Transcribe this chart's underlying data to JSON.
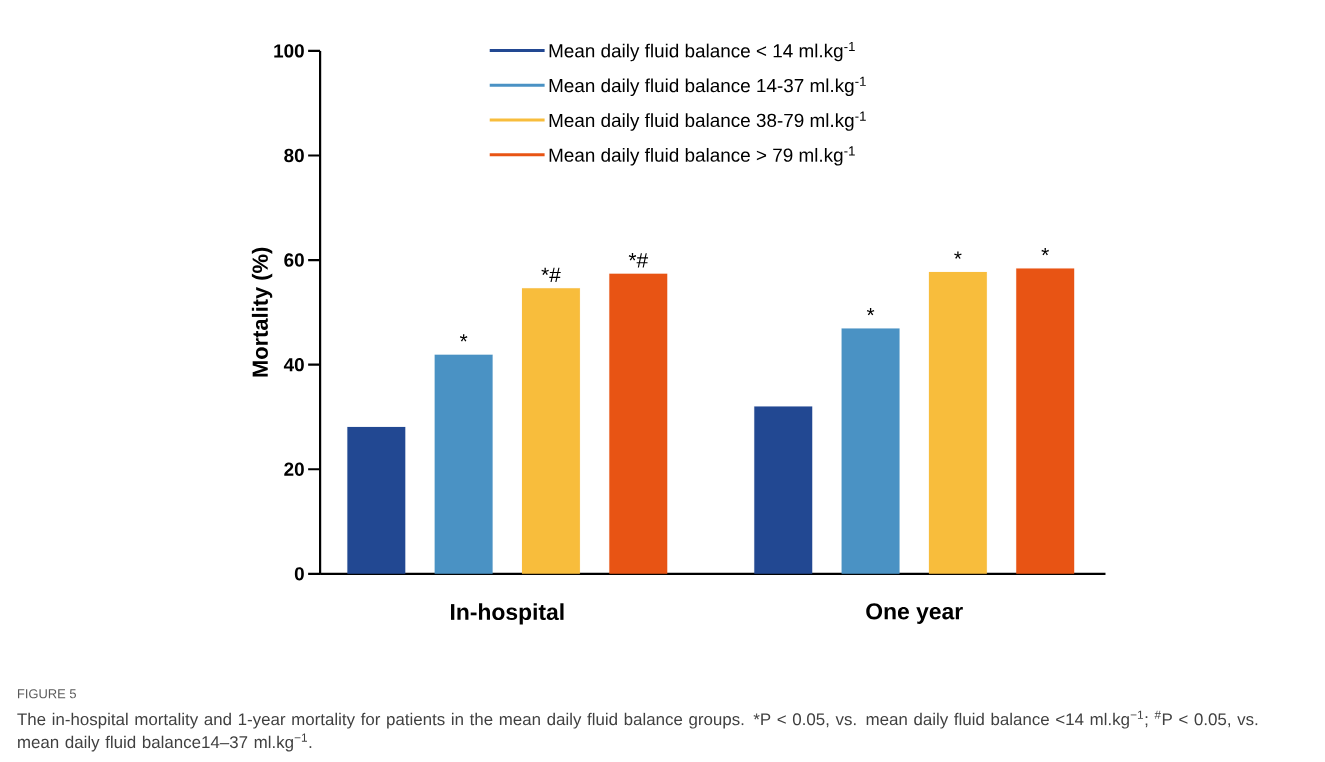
{
  "chart_data": {
    "type": "bar",
    "categories": [
      "In-hospital",
      "One year"
    ],
    "ylabel": "Mortality (%)",
    "ylim": [
      0,
      100
    ],
    "yticks": [
      0,
      20,
      40,
      60,
      80,
      100
    ],
    "grid": false,
    "legend": "top",
    "series": [
      {
        "name": "Mean daily fluid balance < 14 ml.kg$^{-1}$",
        "color": "#224892",
        "values": [
          28.1,
          32.0
        ]
      },
      {
        "name": "Mean daily fluid balance 14-37 ml.kg$^{-1}$",
        "color": "#4a92c4",
        "values": [
          41.9,
          46.9
        ],
        "value_labels": [
          "*",
          "*"
        ]
      },
      {
        "name": "Mean daily fluid balance 38-79 ml.kg$^{-1}$",
        "color": "#f8bd3c",
        "values": [
          54.6,
          57.7
        ],
        "value_labels": [
          "*#",
          "*"
        ]
      },
      {
        "name": "Mean daily fluid balance > 79 ml.kg$^{-1}$",
        "color": "#e85414",
        "values": [
          57.4,
          58.4
        ],
        "value_labels": [
          "*#",
          "*"
        ]
      }
    ],
    "annotations": [
      "FIGURE 5",
      "The in-hospital mortality and 1-year mortality for patients in the mean daily fluid balance groups. *P < 0.05, vs. mean daily fluid balance <14 ml.kg$^{−1}$; $^{#}$P < 0.05, vs. mean daily fluid balance14–37 ml.kg$^{−1}$."
    ]
  }
}
